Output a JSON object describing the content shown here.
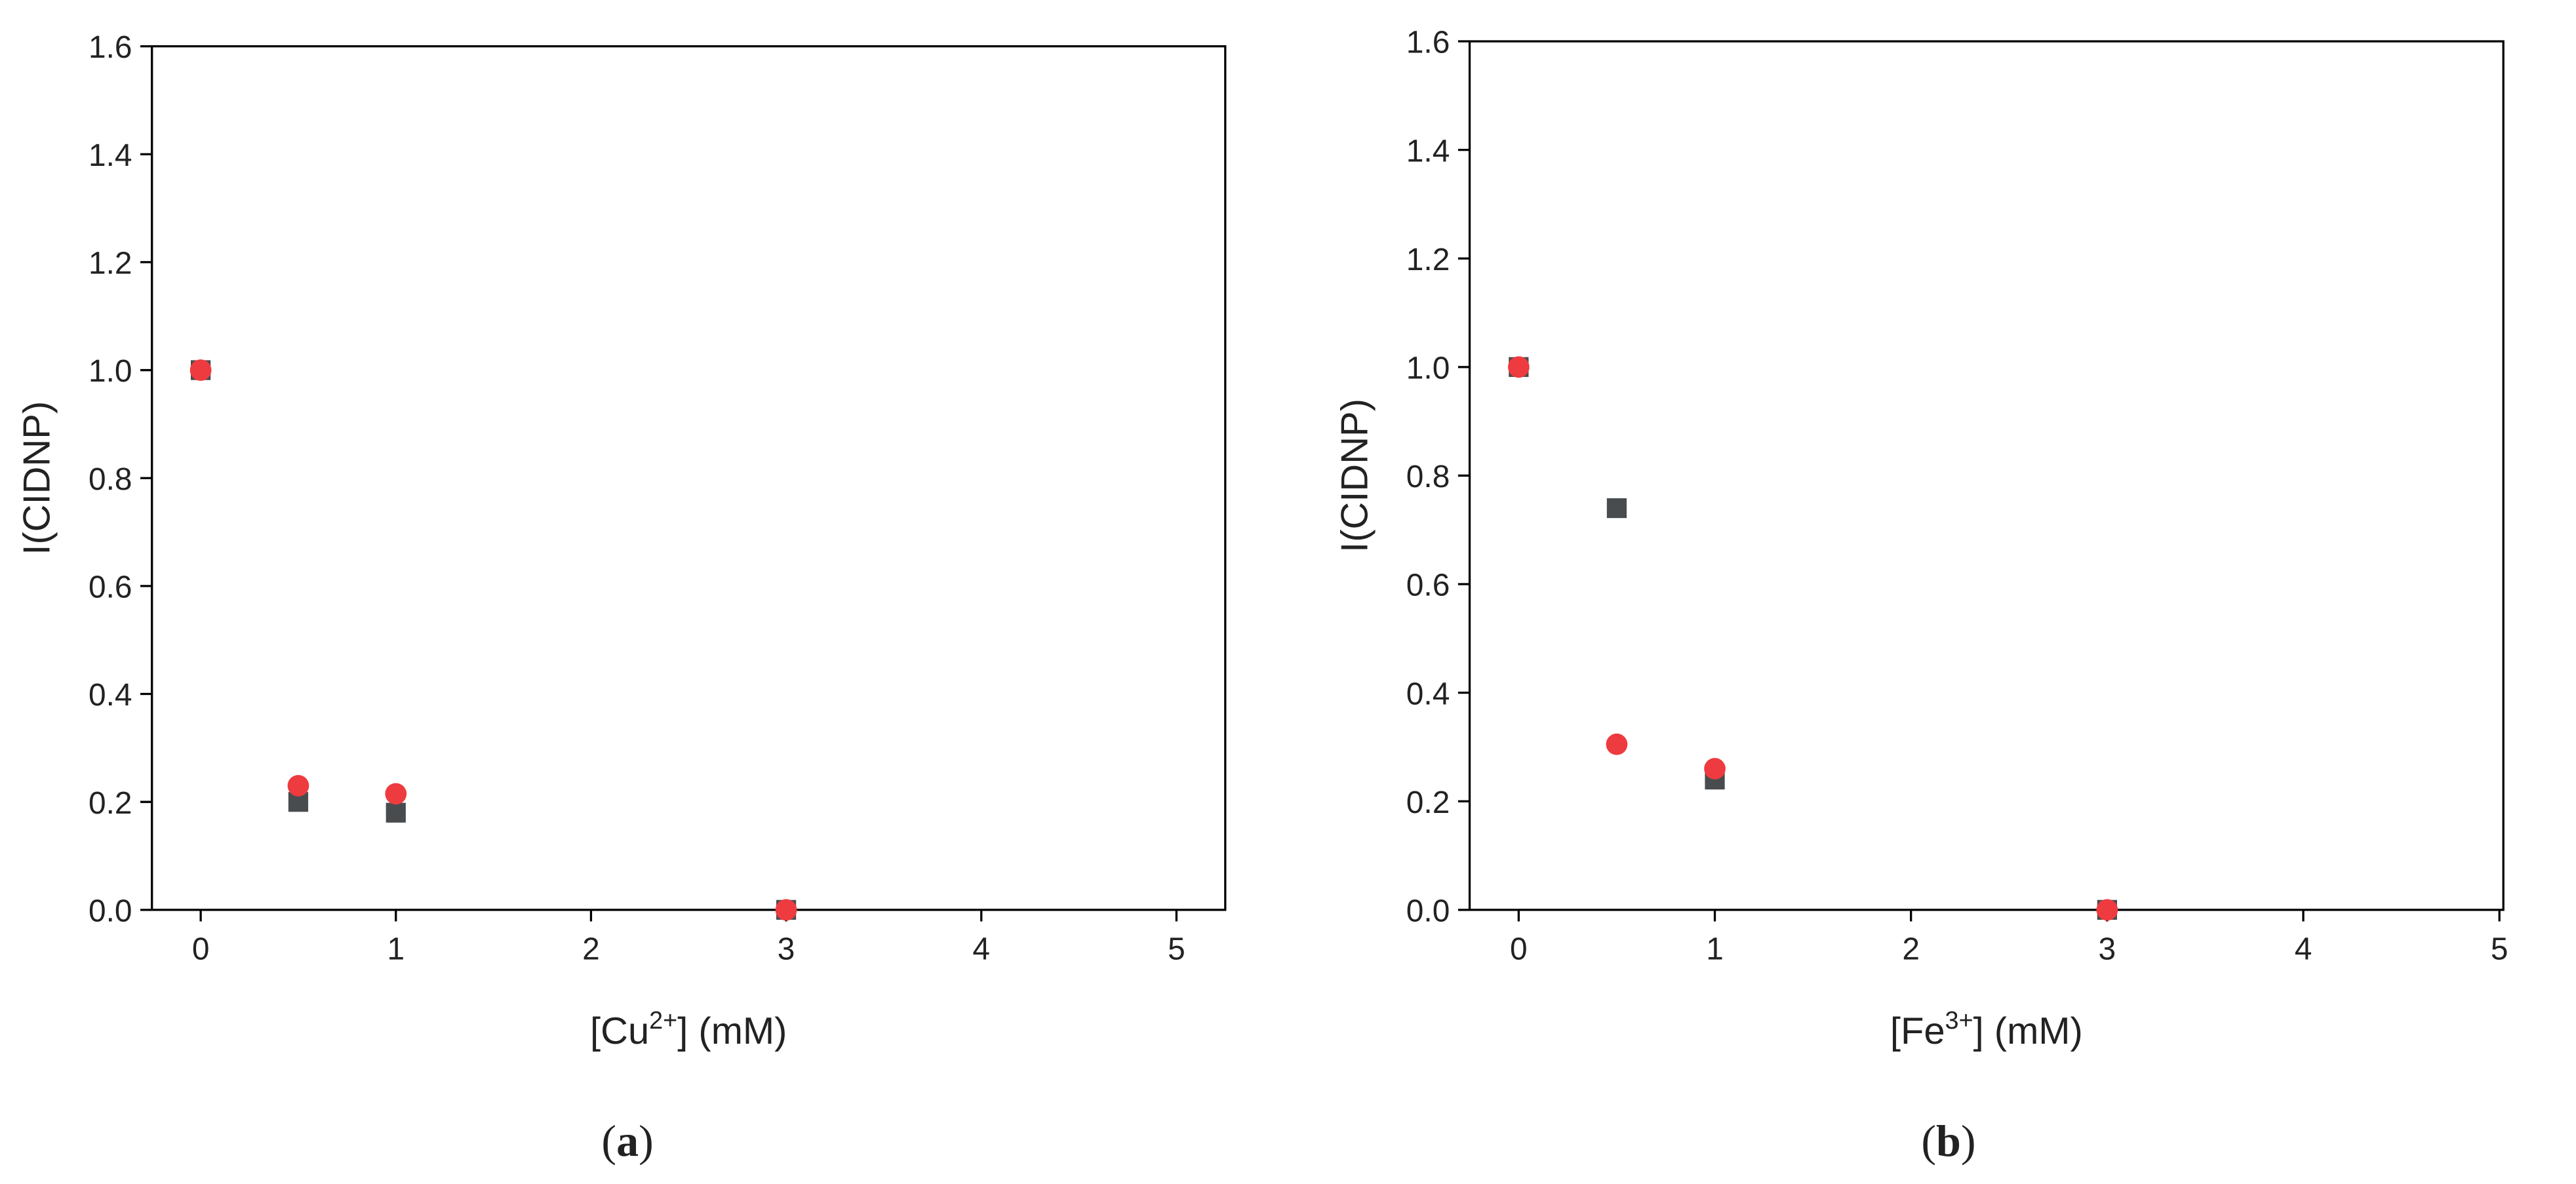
{
  "chart_data": [
    {
      "type": "scatter",
      "panel_label": [
        "(",
        "a",
        ")"
      ],
      "xlabel": [
        "[Cu",
        "2+",
        "] (mM)"
      ],
      "ylabel": "I(CIDNP)",
      "xlim": [
        -0.25,
        5.25
      ],
      "ylim": [
        0,
        1.6
      ],
      "xticks": [
        0,
        1,
        2,
        3,
        4,
        5
      ],
      "yticks": [
        {
          "value": 0,
          "label": "0.0"
        },
        0.2,
        0.4,
        0.6,
        0.8,
        {
          "value": 1,
          "label": "1.0"
        },
        1.2,
        1.4,
        1.6
      ],
      "x": [
        0,
        0.5,
        1,
        3
      ],
      "series": [
        {
          "color": "#484c4f",
          "marker": "square",
          "values": [
            1.0,
            0.2,
            0.18,
            0.0
          ]
        },
        {
          "color": "#ee3b3f",
          "marker": "circle",
          "values": [
            1.0,
            0.23,
            0.215,
            0.0
          ]
        }
      ]
    },
    {
      "type": "scatter",
      "panel_label": [
        "(",
        "b",
        ")"
      ],
      "xlabel": [
        "[Fe",
        "3+",
        "] (mM)"
      ],
      "ylabel": "I(CIDNP)",
      "xlim": [
        -0.25,
        5.02
      ],
      "ylim": [
        0,
        1.6
      ],
      "xticks": [
        0,
        1,
        2,
        3,
        4,
        5
      ],
      "yticks": [
        {
          "value": 0,
          "label": "0.0"
        },
        0.2,
        0.4,
        0.6,
        0.8,
        {
          "value": 1,
          "label": "1.0"
        },
        1.2,
        1.4,
        1.6
      ],
      "x": [
        0,
        0.5,
        1,
        3
      ],
      "series": [
        {
          "color": "#484c4f",
          "marker": "square",
          "values": [
            1.0,
            0.74,
            0.24,
            0.0
          ]
        },
        {
          "color": "#ee3b3f",
          "marker": "circle",
          "values": [
            1.0,
            0.305,
            0.26,
            0.0
          ]
        }
      ]
    }
  ]
}
